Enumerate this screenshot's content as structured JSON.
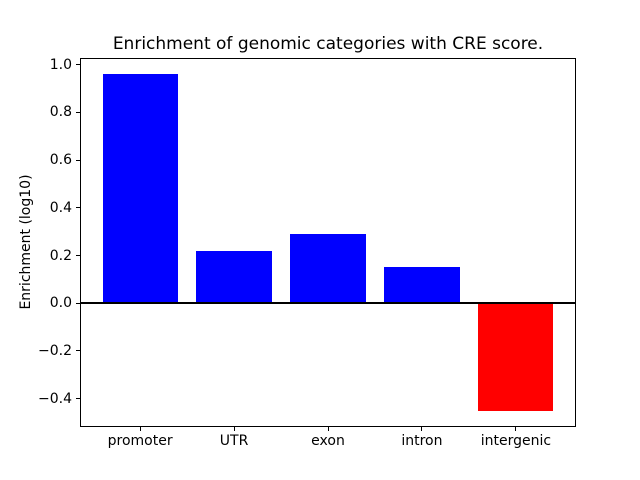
{
  "chart_data": {
    "type": "bar",
    "title": "Enrichment of genomic categories with CRE score.",
    "xlabel": "",
    "ylabel": "Enrichment (log10)",
    "categories": [
      "promoter",
      "UTR",
      "exon",
      "intron",
      "intergenic"
    ],
    "values": [
      0.96,
      0.22,
      0.29,
      0.15,
      -0.45
    ],
    "bar_colors": [
      "#0000ff",
      "#0000ff",
      "#0000ff",
      "#0000ff",
      "#ff0000"
    ],
    "positive_color": "#0000ff",
    "negative_color": "#ff0000",
    "yticks": [
      {
        "value": 1.0,
        "label": "1.0"
      },
      {
        "value": 0.8,
        "label": "0.8"
      },
      {
        "value": 0.6,
        "label": "0.6"
      },
      {
        "value": 0.4,
        "label": "0.4"
      },
      {
        "value": 0.2,
        "label": "0.2"
      },
      {
        "value": 0.0,
        "label": "0.0"
      },
      {
        "value": -0.2,
        "label": "−0.2"
      },
      {
        "value": -0.4,
        "label": "−0.4"
      }
    ],
    "ylim": [
      -0.52,
      1.03
    ],
    "xlim": [
      -0.64,
      4.64
    ],
    "bar_width": 0.8,
    "grid": false,
    "legend": null,
    "zero_line": true,
    "frame_on": true
  }
}
